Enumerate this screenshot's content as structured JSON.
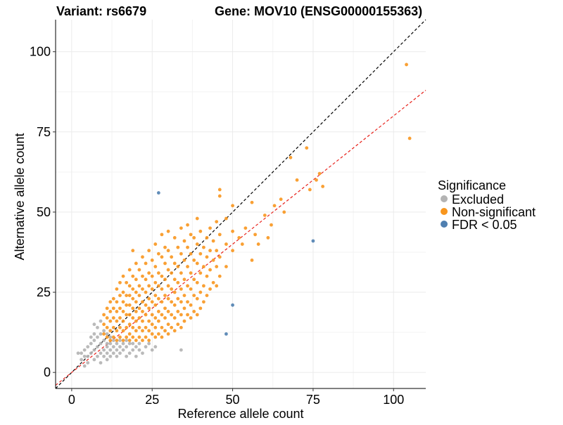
{
  "chart_data": {
    "type": "scatter",
    "title_left": "Variant: rs6679",
    "title_right": "Gene: MOV10 (ENSG00000155363)",
    "xlabel": "Reference allele count",
    "ylabel": "Alternative allele count",
    "xlim": [
      -5,
      110
    ],
    "ylim": [
      -5,
      110
    ],
    "x_ticks": [
      0,
      25,
      50,
      75,
      100
    ],
    "y_ticks": [
      0,
      25,
      50,
      75,
      100
    ],
    "reference_lines": [
      {
        "name": "identity",
        "slope": 1.0,
        "intercept": 0,
        "color": "#000000",
        "style": "dashed"
      },
      {
        "name": "fitted",
        "slope": 0.8,
        "intercept": 0,
        "color": "#e8211b",
        "style": "dashed"
      }
    ],
    "legend": {
      "title": "Significance",
      "position": "right",
      "entries": [
        {
          "label": "Excluded",
          "color": "#b3b3b3"
        },
        {
          "label": "Non-significant",
          "color": "#f8961e"
        },
        {
          "label": "FDR < 0.05",
          "color": "#4f7fb0"
        }
      ]
    },
    "series": [
      {
        "name": "Excluded",
        "color": "#b3b3b3",
        "points": [
          [
            2,
            6
          ],
          [
            3,
            4
          ],
          [
            3,
            6
          ],
          [
            4,
            2
          ],
          [
            4,
            5
          ],
          [
            4,
            7
          ],
          [
            5,
            3
          ],
          [
            5,
            5
          ],
          [
            5,
            8
          ],
          [
            6,
            6
          ],
          [
            6,
            9
          ],
          [
            6,
            11
          ],
          [
            7,
            4
          ],
          [
            7,
            7
          ],
          [
            7,
            10
          ],
          [
            7,
            12
          ],
          [
            7,
            15
          ],
          [
            8,
            5
          ],
          [
            8,
            8
          ],
          [
            8,
            11
          ],
          [
            8,
            14
          ],
          [
            9,
            3
          ],
          [
            9,
            6
          ],
          [
            9,
            9
          ],
          [
            9,
            12
          ],
          [
            9,
            16
          ],
          [
            10,
            5
          ],
          [
            10,
            7
          ],
          [
            10,
            10
          ],
          [
            10,
            13
          ],
          [
            11,
            4
          ],
          [
            11,
            6
          ],
          [
            11,
            8
          ],
          [
            11,
            9
          ],
          [
            11,
            12
          ],
          [
            12,
            5
          ],
          [
            12,
            7
          ],
          [
            12,
            9
          ],
          [
            12,
            11
          ],
          [
            13,
            6
          ],
          [
            13,
            8
          ],
          [
            13,
            10
          ],
          [
            14,
            5
          ],
          [
            14,
            7
          ],
          [
            14,
            9
          ],
          [
            15,
            6
          ],
          [
            15,
            8
          ],
          [
            15,
            10
          ],
          [
            16,
            7
          ],
          [
            16,
            9
          ],
          [
            17,
            5
          ],
          [
            17,
            8
          ],
          [
            17,
            10
          ],
          [
            18,
            6
          ],
          [
            18,
            9
          ],
          [
            19,
            7
          ],
          [
            19,
            9
          ],
          [
            20,
            5
          ],
          [
            20,
            8
          ],
          [
            21,
            7
          ],
          [
            21,
            9
          ],
          [
            22,
            6
          ],
          [
            23,
            8
          ],
          [
            24,
            9
          ],
          [
            25,
            7
          ],
          [
            26,
            8
          ],
          [
            34,
            7
          ]
        ]
      },
      {
        "name": "Non-significant",
        "color": "#f8961e",
        "points": [
          [
            10,
            12
          ],
          [
            10,
            15
          ],
          [
            10,
            18
          ],
          [
            11,
            11
          ],
          [
            11,
            14
          ],
          [
            11,
            17
          ],
          [
            11,
            20
          ],
          [
            12,
            10
          ],
          [
            12,
            13
          ],
          [
            12,
            16
          ],
          [
            12,
            19
          ],
          [
            12,
            22
          ],
          [
            13,
            11
          ],
          [
            13,
            14
          ],
          [
            13,
            17
          ],
          [
            13,
            20
          ],
          [
            13,
            23
          ],
          [
            14,
            10
          ],
          [
            14,
            13
          ],
          [
            14,
            16
          ],
          [
            14,
            19
          ],
          [
            14,
            22
          ],
          [
            14,
            26
          ],
          [
            15,
            11
          ],
          [
            15,
            14
          ],
          [
            15,
            17
          ],
          [
            15,
            20
          ],
          [
            15,
            24
          ],
          [
            15,
            28
          ],
          [
            16,
            10
          ],
          [
            16,
            13
          ],
          [
            16,
            16
          ],
          [
            16,
            19
          ],
          [
            16,
            22
          ],
          [
            16,
            25
          ],
          [
            16,
            30
          ],
          [
            17,
            11
          ],
          [
            17,
            14
          ],
          [
            17,
            18
          ],
          [
            17,
            21
          ],
          [
            17,
            24
          ],
          [
            17,
            28
          ],
          [
            18,
            10
          ],
          [
            18,
            12
          ],
          [
            18,
            15
          ],
          [
            18,
            18
          ],
          [
            18,
            21
          ],
          [
            18,
            24
          ],
          [
            18,
            27
          ],
          [
            18,
            32
          ],
          [
            19,
            11
          ],
          [
            19,
            14
          ],
          [
            19,
            17
          ],
          [
            19,
            20
          ],
          [
            19,
            23
          ],
          [
            19,
            26
          ],
          [
            19,
            30
          ],
          [
            19,
            38
          ],
          [
            20,
            10
          ],
          [
            20,
            13
          ],
          [
            20,
            16
          ],
          [
            20,
            19
          ],
          [
            20,
            22
          ],
          [
            20,
            25
          ],
          [
            20,
            29
          ],
          [
            20,
            34
          ],
          [
            21,
            11
          ],
          [
            21,
            14
          ],
          [
            21,
            17
          ],
          [
            21,
            20
          ],
          [
            21,
            24
          ],
          [
            21,
            27
          ],
          [
            21,
            32
          ],
          [
            22,
            10
          ],
          [
            22,
            13
          ],
          [
            22,
            16
          ],
          [
            22,
            19
          ],
          [
            22,
            22
          ],
          [
            22,
            26
          ],
          [
            22,
            30
          ],
          [
            22,
            36
          ],
          [
            23,
            11
          ],
          [
            23,
            14
          ],
          [
            23,
            18
          ],
          [
            23,
            21
          ],
          [
            23,
            25
          ],
          [
            23,
            29
          ],
          [
            23,
            34
          ],
          [
            24,
            10
          ],
          [
            24,
            13
          ],
          [
            24,
            16
          ],
          [
            24,
            20
          ],
          [
            24,
            23
          ],
          [
            24,
            27
          ],
          [
            24,
            31
          ],
          [
            24,
            38
          ],
          [
            25,
            12
          ],
          [
            25,
            15
          ],
          [
            25,
            18
          ],
          [
            25,
            22
          ],
          [
            25,
            26
          ],
          [
            25,
            30
          ],
          [
            25,
            35
          ],
          [
            26,
            11
          ],
          [
            26,
            14
          ],
          [
            26,
            17
          ],
          [
            26,
            21
          ],
          [
            26,
            24
          ],
          [
            26,
            28
          ],
          [
            26,
            33
          ],
          [
            26,
            40
          ],
          [
            27,
            12
          ],
          [
            27,
            16
          ],
          [
            27,
            19
          ],
          [
            27,
            23
          ],
          [
            27,
            27
          ],
          [
            27,
            31
          ],
          [
            27,
            37
          ],
          [
            28,
            11
          ],
          [
            28,
            14
          ],
          [
            28,
            18
          ],
          [
            28,
            22
          ],
          [
            28,
            26
          ],
          [
            28,
            30
          ],
          [
            28,
            36
          ],
          [
            28,
            43
          ],
          [
            29,
            13
          ],
          [
            29,
            17
          ],
          [
            29,
            20
          ],
          [
            29,
            24
          ],
          [
            29,
            29
          ],
          [
            29,
            34
          ],
          [
            29,
            39
          ],
          [
            30,
            12
          ],
          [
            30,
            15
          ],
          [
            30,
            19
          ],
          [
            30,
            23
          ],
          [
            30,
            27
          ],
          [
            30,
            32
          ],
          [
            30,
            38
          ],
          [
            30,
            44
          ],
          [
            31,
            14
          ],
          [
            31,
            18
          ],
          [
            31,
            22
          ],
          [
            31,
            26
          ],
          [
            31,
            31
          ],
          [
            31,
            36
          ],
          [
            32,
            13
          ],
          [
            32,
            17
          ],
          [
            32,
            21
          ],
          [
            32,
            25
          ],
          [
            32,
            29
          ],
          [
            32,
            34
          ],
          [
            32,
            42
          ],
          [
            33,
            15
          ],
          [
            33,
            19
          ],
          [
            33,
            23
          ],
          [
            33,
            28
          ],
          [
            33,
            33
          ],
          [
            33,
            39
          ],
          [
            34,
            14
          ],
          [
            34,
            18
          ],
          [
            34,
            22
          ],
          [
            34,
            26
          ],
          [
            34,
            31
          ],
          [
            34,
            37
          ],
          [
            34,
            45
          ],
          [
            35,
            16
          ],
          [
            35,
            20
          ],
          [
            35,
            24
          ],
          [
            35,
            29
          ],
          [
            35,
            35
          ],
          [
            35,
            41
          ],
          [
            36,
            18
          ],
          [
            36,
            22
          ],
          [
            36,
            27
          ],
          [
            36,
            33
          ],
          [
            36,
            39
          ],
          [
            36,
            46
          ],
          [
            37,
            17
          ],
          [
            37,
            21
          ],
          [
            37,
            26
          ],
          [
            37,
            31
          ],
          [
            37,
            37
          ],
          [
            37,
            43
          ],
          [
            38,
            19
          ],
          [
            38,
            24
          ],
          [
            38,
            29
          ],
          [
            38,
            35
          ],
          [
            38,
            42
          ],
          [
            39,
            18
          ],
          [
            39,
            23
          ],
          [
            39,
            28
          ],
          [
            39,
            34
          ],
          [
            39,
            40
          ],
          [
            39,
            48
          ],
          [
            40,
            20
          ],
          [
            40,
            25
          ],
          [
            40,
            31
          ],
          [
            40,
            37
          ],
          [
            40,
            44
          ],
          [
            41,
            22
          ],
          [
            41,
            27
          ],
          [
            41,
            33
          ],
          [
            41,
            39
          ],
          [
            42,
            24
          ],
          [
            42,
            30
          ],
          [
            42,
            36
          ],
          [
            42,
            42
          ],
          [
            43,
            26
          ],
          [
            43,
            32
          ],
          [
            43,
            38
          ],
          [
            43,
            45
          ],
          [
            44,
            28
          ],
          [
            44,
            35
          ],
          [
            44,
            41
          ],
          [
            45,
            27
          ],
          [
            45,
            33
          ],
          [
            45,
            38
          ],
          [
            45,
            47
          ],
          [
            46,
            30
          ],
          [
            46,
            36
          ],
          [
            46,
            43
          ],
          [
            46,
            55
          ],
          [
            46,
            57
          ],
          [
            48,
            33
          ],
          [
            48,
            40
          ],
          [
            48,
            48
          ],
          [
            50,
            38
          ],
          [
            50,
            44
          ],
          [
            50,
            52
          ],
          [
            52,
            42
          ],
          [
            53,
            40
          ],
          [
            54,
            45
          ],
          [
            56,
            53
          ],
          [
            56,
            35
          ],
          [
            57,
            43
          ],
          [
            58,
            40
          ],
          [
            60,
            49
          ],
          [
            61,
            42
          ],
          [
            62,
            46
          ],
          [
            63,
            52
          ],
          [
            65,
            54
          ],
          [
            66,
            50
          ],
          [
            68,
            67
          ],
          [
            70,
            60
          ],
          [
            73,
            70
          ],
          [
            74,
            57
          ],
          [
            76,
            60
          ],
          [
            77,
            62
          ],
          [
            78,
            58
          ],
          [
            104,
            96
          ],
          [
            105,
            73
          ]
        ]
      },
      {
        "name": "FDR < 0.05",
        "color": "#4f7fb0",
        "points": [
          [
            27,
            56
          ],
          [
            48,
            12
          ],
          [
            50,
            21
          ],
          [
            75,
            41
          ]
        ]
      }
    ]
  }
}
